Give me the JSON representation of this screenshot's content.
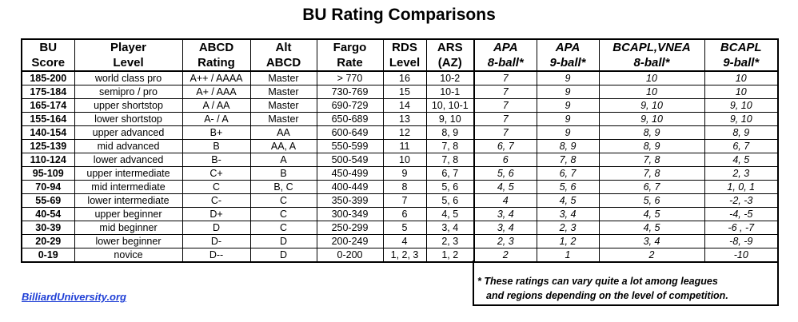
{
  "title": "BU Rating Comparisons",
  "headers": [
    [
      "BU",
      "Score"
    ],
    [
      "Player",
      "Level"
    ],
    [
      "ABCD",
      "Rating"
    ],
    [
      "Alt",
      "ABCD"
    ],
    [
      "Fargo",
      "Rate"
    ],
    [
      "RDS",
      "Level"
    ],
    [
      "ARS",
      "(AZ)"
    ],
    [
      "APA",
      "8-ball*"
    ],
    [
      "APA",
      "9-ball*"
    ],
    [
      "BCAPL,VNEA",
      "8-ball*"
    ],
    [
      "BCAPL",
      "9-ball*"
    ]
  ],
  "rows": [
    [
      "185-200",
      "world class pro",
      "A++ / AAAA",
      "Master",
      "> 770",
      "16",
      "10-2",
      "7",
      "9",
      "10",
      "10"
    ],
    [
      "175-184",
      "semipro / pro",
      "A+ / AAA",
      "Master",
      "730-769",
      "15",
      "10-1",
      "7",
      "9",
      "10",
      "10"
    ],
    [
      "165-174",
      "upper shortstop",
      "A / AA",
      "Master",
      "690-729",
      "14",
      "10, 10-1",
      "7",
      "9",
      "9, 10",
      "9, 10"
    ],
    [
      "155-164",
      "lower shortstop",
      "A- / A",
      "Master",
      "650-689",
      "13",
      "9, 10",
      "7",
      "9",
      "9, 10",
      "9, 10"
    ],
    [
      "140-154",
      "upper advanced",
      "B+",
      "AA",
      "600-649",
      "12",
      "8, 9",
      "7",
      "9",
      "8, 9",
      "8, 9"
    ],
    [
      "125-139",
      "mid advanced",
      "B",
      "AA, A",
      "550-599",
      "11",
      "7, 8",
      "6, 7",
      "8, 9",
      "8, 9",
      "6, 7"
    ],
    [
      "110-124",
      "lower advanced",
      "B-",
      "A",
      "500-549",
      "10",
      "7, 8",
      "6",
      "7, 8",
      "7, 8",
      "4, 5"
    ],
    [
      "95-109",
      "upper intermediate",
      "C+",
      "B",
      "450-499",
      "9",
      "6, 7",
      "5, 6",
      "6, 7",
      "7, 8",
      "2, 3"
    ],
    [
      "70-94",
      "mid intermediate",
      "C",
      "B, C",
      "400-449",
      "8",
      "5, 6",
      "4, 5",
      "5, 6",
      "6, 7",
      "1, 0, 1"
    ],
    [
      "55-69",
      "lower intermediate",
      "C-",
      "C",
      "350-399",
      "7",
      "5, 6",
      "4",
      "4, 5",
      "5, 6",
      "-2, -3"
    ],
    [
      "40-54",
      "upper beginner",
      "D+",
      "C",
      "300-349",
      "6",
      "4, 5",
      "3, 4",
      "3, 4",
      "4, 5",
      "-4, -5"
    ],
    [
      "30-39",
      "mid beginner",
      "D",
      "C",
      "250-299",
      "5",
      "3, 4",
      "3, 4",
      "2, 3",
      "4, 5",
      "-6 , -7"
    ],
    [
      "20-29",
      "lower beginner",
      "D-",
      "D",
      "200-249",
      "4",
      "2, 3",
      "2, 3",
      "1, 2",
      "3, 4",
      "-8, -9"
    ],
    [
      "0-19",
      "novice",
      "D--",
      "D",
      "0-200",
      "1, 2, 3",
      "1, 2",
      "2",
      "1",
      "2",
      "-10"
    ]
  ],
  "note": {
    "line1": "*  These ratings can vary quite a lot among leagues",
    "line2": "and regions depending on the level of competition."
  },
  "link": "BilliardUniversity.org",
  "colors": {
    "link": "#1f3fd6"
  }
}
